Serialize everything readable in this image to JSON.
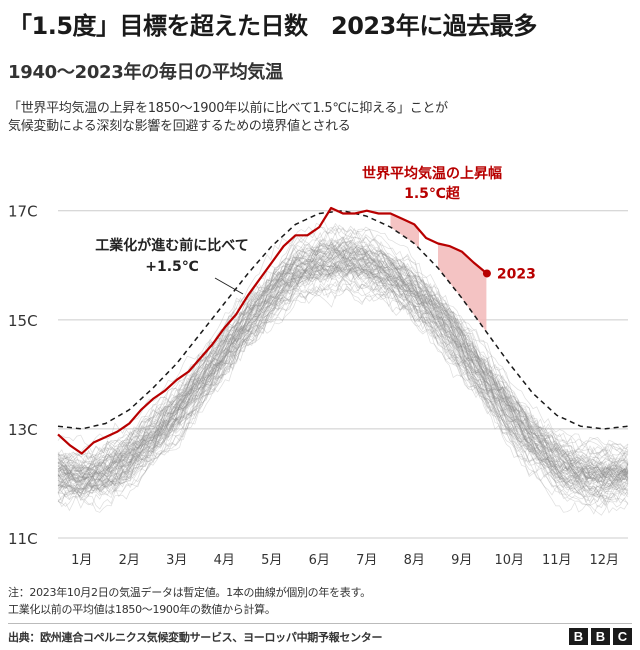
{
  "header": {
    "title": "「1.5度」目標を超えた日数　2023年に過去最多",
    "subtitle": "1940〜2023年の毎日の平均気温",
    "description_lines": [
      "「世界平均気温の上昇を1850〜1900年以前に比べて1.5℃に抑える」ことが",
      "気候変動による深刻な影響を回避するための境界値とされる"
    ]
  },
  "annotations": {
    "preindustrial_line1": "工業化が進む前に比べて",
    "preindustrial_line2": "+1.5℃",
    "exceed_line1": "世界平均気温の上昇幅",
    "exceed_line2": "1.5℃超",
    "year_label": "2023"
  },
  "colors": {
    "highlight": "#b80000",
    "highlight_fill": "#f2b8b8",
    "background_lines": "#8a8a8a",
    "threshold": "#1a1a1a",
    "grid": "#cccccc"
  },
  "chart_data": {
    "type": "line",
    "title": "1940〜2023年の毎日の平均気温",
    "x_unit": "month",
    "xlim": [
      1,
      13
    ],
    "ylim": [
      11,
      17.6
    ],
    "y_ticks": [
      11,
      13,
      15,
      17
    ],
    "y_tick_labels": [
      "11C",
      "13C",
      "15C",
      "17C"
    ],
    "x_ticks": [
      1.5,
      2.5,
      3.5,
      4.5,
      5.5,
      6.5,
      7.5,
      8.5,
      9.5,
      10.5,
      11.5,
      12.5
    ],
    "x_tick_labels": [
      "1月",
      "2月",
      "3月",
      "4月",
      "5月",
      "6月",
      "7月",
      "8月",
      "9月",
      "10月",
      "11月",
      "12月"
    ],
    "grid": true,
    "series": [
      {
        "name": "工業化が進む前に比べて +1.5℃",
        "style": "dashed",
        "x": [
          1.0,
          1.5,
          2.0,
          2.5,
          3.0,
          3.5,
          4.0,
          4.5,
          5.0,
          5.5,
          6.0,
          6.5,
          7.0,
          7.5,
          8.0,
          8.5,
          9.0,
          9.5,
          10.0,
          10.5,
          11.0,
          11.5,
          12.0,
          12.5,
          13.0
        ],
        "y": [
          13.05,
          13.0,
          13.1,
          13.35,
          13.75,
          14.2,
          14.75,
          15.3,
          15.85,
          16.35,
          16.75,
          16.95,
          17.0,
          16.9,
          16.7,
          16.4,
          15.95,
          15.4,
          14.8,
          14.2,
          13.65,
          13.25,
          13.05,
          13.0,
          13.05
        ]
      },
      {
        "name": "2023",
        "x": [
          1.0,
          1.25,
          1.5,
          1.75,
          2.0,
          2.25,
          2.5,
          2.75,
          3.0,
          3.25,
          3.5,
          3.75,
          4.0,
          4.25,
          4.5,
          4.75,
          5.0,
          5.25,
          5.5,
          5.75,
          6.0,
          6.25,
          6.5,
          6.75,
          7.0,
          7.25,
          7.5,
          7.75,
          8.0,
          8.25,
          8.5,
          8.75,
          9.0,
          9.25,
          9.5,
          9.75,
          10.03
        ],
        "y": [
          12.9,
          12.7,
          12.55,
          12.75,
          12.85,
          12.95,
          13.1,
          13.35,
          13.55,
          13.7,
          13.9,
          14.05,
          14.3,
          14.55,
          14.85,
          15.1,
          15.45,
          15.75,
          16.05,
          16.35,
          16.55,
          16.55,
          16.7,
          17.05,
          16.95,
          16.95,
          17.0,
          16.95,
          16.95,
          16.85,
          16.75,
          16.5,
          16.4,
          16.35,
          16.25,
          16.05,
          15.85
        ]
      }
    ],
    "background_series_count": 83,
    "background_years": [
      1940,
      2022
    ],
    "exceed_1_5C_regions_x": [
      [
        6.6,
        7.0
      ],
      [
        8.0,
        8.6
      ],
      [
        9.0,
        10.03
      ]
    ]
  },
  "footer": {
    "note_line1": "注：2023年10月2日の気温データは暫定値。1本の曲線が個別の年を表す。",
    "note_line2": "工業化以前の平均値は1850〜1900年の数値から計算。",
    "source": "出典：欧州連合コペルニクス気候変動サービス、ヨーロッパ中期予報センター",
    "logo_letters": [
      "B",
      "B",
      "C"
    ]
  }
}
